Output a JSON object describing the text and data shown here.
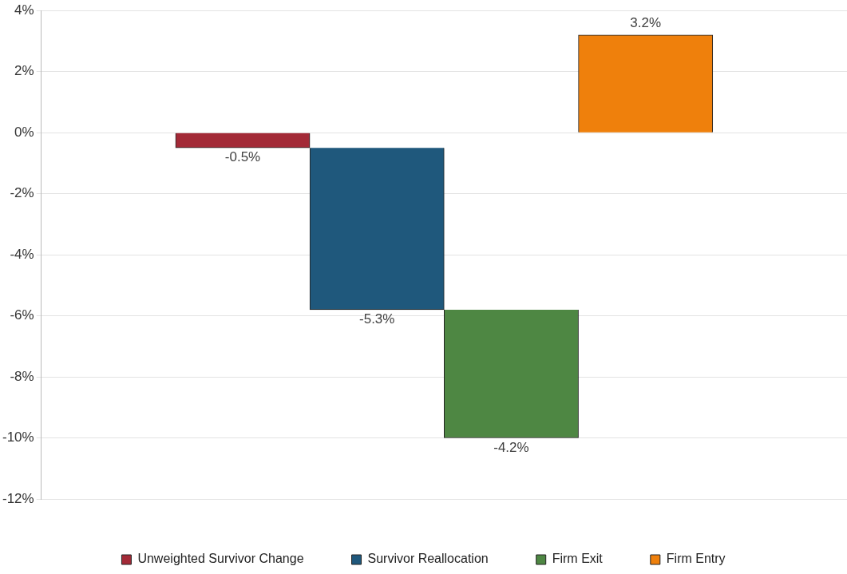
{
  "chart_data": {
    "type": "bar",
    "categories": [
      null,
      null,
      null,
      null,
      null,
      null
    ],
    "series": [
      {
        "name": "Unweighted Survivor Change",
        "color": "#a32a37",
        "values": [
          null,
          -0.5,
          null,
          null,
          null,
          null
        ],
        "value_labels": [
          null,
          "-0.5%",
          null,
          null,
          null,
          null
        ],
        "base": [
          null,
          0,
          null,
          null,
          null,
          null
        ]
      },
      {
        "name": "Survivor Reallocation",
        "color": "#1f587c",
        "values": [
          null,
          null,
          -5.3,
          null,
          null,
          null
        ],
        "value_labels": [
          null,
          null,
          "-5.3%",
          null,
          null,
          null
        ],
        "base": [
          null,
          null,
          -0.5,
          null,
          null,
          null
        ]
      },
      {
        "name": "Firm Exit",
        "color": "#4e8743",
        "values": [
          null,
          null,
          null,
          -4.2,
          null,
          null
        ],
        "value_labels": [
          null,
          null,
          null,
          "-4.2%",
          null,
          null
        ],
        "base": [
          null,
          null,
          null,
          -5.8,
          null,
          null
        ]
      },
      {
        "name": "Firm Entry",
        "color": "#ef800c",
        "values": [
          null,
          null,
          null,
          null,
          3.2,
          null
        ],
        "value_labels": [
          null,
          null,
          null,
          null,
          "3.2%",
          null
        ],
        "base": [
          null,
          null,
          null,
          null,
          0,
          null
        ]
      }
    ],
    "ylim": [
      -12,
      4
    ],
    "yticks": [
      {
        "value": -12,
        "label": "-12%"
      },
      {
        "value": -10,
        "label": "-10%"
      },
      {
        "value": -8,
        "label": "-8%"
      },
      {
        "value": -6,
        "label": "-6%"
      },
      {
        "value": -4,
        "label": "-4%"
      },
      {
        "value": -2,
        "label": "-2%"
      },
      {
        "value": 0,
        "label": "0%"
      },
      {
        "value": 2,
        "label": "2%"
      },
      {
        "value": 4,
        "label": "4%"
      }
    ],
    "grid": "y",
    "legend": "bottom"
  }
}
